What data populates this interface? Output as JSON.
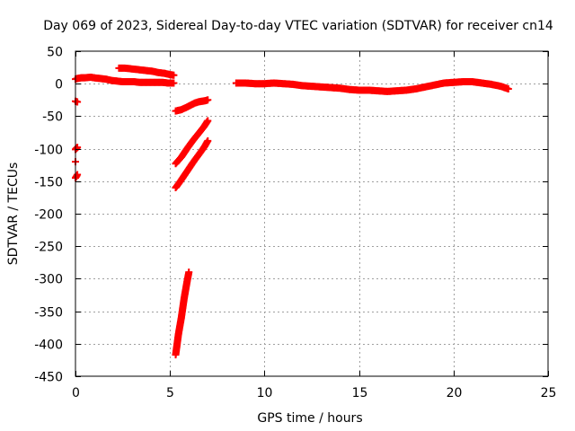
{
  "chart_data": {
    "type": "scatter",
    "title": "Day 069 of 2023, Sidereal Day-to-day VTEC variation (SDTVAR) for receiver cn14",
    "xlabel": "GPS time / hours",
    "ylabel": "SDTVAR / TECUs",
    "xlim": [
      0,
      25
    ],
    "ylim": [
      -450,
      50
    ],
    "xticks": [
      0,
      5,
      10,
      15,
      20,
      25
    ],
    "yticks": [
      50,
      0,
      -50,
      -100,
      -150,
      -200,
      -250,
      -300,
      -350,
      -400,
      -450
    ],
    "grid": true,
    "marker": "plus",
    "color": "#ff0000",
    "series": [
      {
        "segments": [
          [
            [
              0.0,
              7
            ],
            [
              0.1,
              8
            ],
            [
              0.3,
              9
            ],
            [
              0.5,
              9
            ],
            [
              0.8,
              10
            ],
            [
              1.0,
              9
            ],
            [
              1.3,
              8
            ],
            [
              1.6,
              7
            ],
            [
              1.9,
              5
            ],
            [
              2.2,
              4
            ],
            [
              2.5,
              3
            ],
            [
              2.8,
              3
            ],
            [
              3.1,
              3
            ],
            [
              3.4,
              2
            ],
            [
              3.7,
              2
            ],
            [
              4.0,
              2
            ],
            [
              4.3,
              2
            ],
            [
              4.6,
              2
            ],
            [
              4.9,
              1
            ],
            [
              5.2,
              1
            ]
          ],
          [
            [
              2.3,
              24
            ],
            [
              2.6,
              24
            ],
            [
              2.9,
              23
            ],
            [
              3.2,
              22
            ],
            [
              3.5,
              21
            ],
            [
              3.8,
              20
            ],
            [
              4.1,
              19
            ],
            [
              4.4,
              17
            ],
            [
              4.7,
              16
            ],
            [
              5.0,
              14
            ],
            [
              5.2,
              13
            ]
          ],
          [
            [
              0.0,
              -27
            ],
            [
              0.1,
              -28
            ]
          ],
          [
            [
              0.0,
              -101
            ],
            [
              0.1,
              -98
            ]
          ],
          [
            [
              0.0,
              -120
            ]
          ],
          [
            [
              0.0,
              -145
            ],
            [
              0.1,
              -140
            ]
          ],
          [
            [
              5.3,
              -42
            ],
            [
              5.6,
              -40
            ],
            [
              5.9,
              -36
            ],
            [
              6.1,
              -33
            ],
            [
              6.3,
              -30
            ],
            [
              6.5,
              -28
            ],
            [
              6.7,
              -27
            ],
            [
              6.9,
              -26
            ],
            [
              7.0,
              -25
            ]
          ],
          [
            [
              5.3,
              -123
            ],
            [
              5.6,
              -113
            ],
            [
              5.9,
              -100
            ],
            [
              6.2,
              -88
            ],
            [
              6.5,
              -77
            ],
            [
              6.8,
              -66
            ],
            [
              7.0,
              -57
            ]
          ],
          [
            [
              5.3,
              -160
            ],
            [
              5.6,
              -148
            ],
            [
              5.9,
              -135
            ],
            [
              6.2,
              -122
            ],
            [
              6.5,
              -110
            ],
            [
              6.8,
              -98
            ],
            [
              7.0,
              -88
            ]
          ],
          [
            [
              5.3,
              -417
            ],
            [
              5.45,
              -385
            ],
            [
              5.6,
              -360
            ],
            [
              5.75,
              -330
            ],
            [
              5.9,
              -305
            ],
            [
              6.0,
              -290
            ]
          ],
          [
            [
              8.5,
              1
            ],
            [
              9.0,
              1
            ],
            [
              9.5,
              0
            ],
            [
              10.0,
              0
            ],
            [
              10.5,
              1
            ],
            [
              11.0,
              0
            ],
            [
              11.5,
              -1
            ],
            [
              12.0,
              -3
            ],
            [
              12.5,
              -4
            ],
            [
              13.0,
              -5
            ],
            [
              13.5,
              -6
            ],
            [
              14.0,
              -7
            ],
            [
              14.5,
              -9
            ],
            [
              15.0,
              -10
            ],
            [
              15.5,
              -10
            ],
            [
              16.0,
              -11
            ],
            [
              16.5,
              -12
            ],
            [
              17.0,
              -11
            ],
            [
              17.5,
              -10
            ],
            [
              18.0,
              -8
            ],
            [
              18.5,
              -5
            ],
            [
              19.0,
              -2
            ],
            [
              19.5,
              1
            ],
            [
              20.0,
              2
            ],
            [
              20.5,
              3
            ],
            [
              21.0,
              3
            ],
            [
              21.5,
              1
            ],
            [
              22.0,
              -1
            ],
            [
              22.5,
              -4
            ],
            [
              22.9,
              -8
            ]
          ]
        ]
      }
    ]
  }
}
